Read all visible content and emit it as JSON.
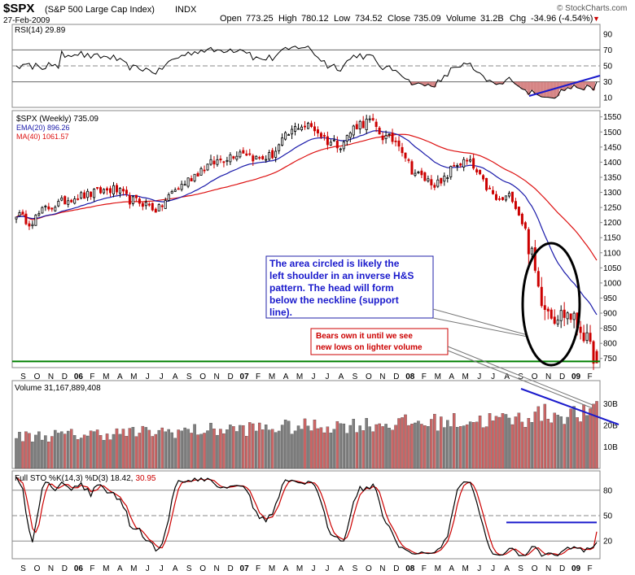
{
  "header": {
    "symbol": "$SPX",
    "name": "(S&P 500 Large Cap Index)",
    "exchange": "INDX",
    "date": "27-Feb-2009",
    "open_label": "Open",
    "open": "773.25",
    "high_label": "High",
    "high": "780.12",
    "low_label": "Low",
    "low": "734.52",
    "close_label": "Close",
    "close": "735.09",
    "volume_label": "Volume",
    "volume": "31.2B",
    "chg_label": "Chg",
    "chg": "-34.96 (-4.54%)",
    "chg_arrow": "▼",
    "watermark": "© StockCharts.com"
  },
  "colors": {
    "up_candle": "#000000",
    "down_candle": "#cc0000",
    "ema": "#1a1aaa",
    "ma": "#dd1111",
    "annotation_blue": "#1a1acc",
    "support_line": "#008000",
    "volume_up": "#808080",
    "volume_down": "#cc6666",
    "rsi_fill": "#cc6666"
  },
  "rsi": {
    "legend": "RSI(14) 29.89",
    "levels": [
      "90",
      "70",
      "50",
      "30",
      "10"
    ]
  },
  "price": {
    "legend": "$SPX (Weekly) 735.09",
    "ema_legend": "EMA(20) 896.26",
    "ma_legend": "MA(40) 1061.57",
    "tick_labels": [
      "1550",
      "1500",
      "1450",
      "1400",
      "1350",
      "1300",
      "1250",
      "1200",
      "1150",
      "1100",
      "1050",
      "1000",
      "950",
      "900",
      "850",
      "800",
      "750"
    ]
  },
  "volume": {
    "legend": "Volume 31,167,889,408",
    "tick_labels": [
      "30B",
      "20B",
      "10B"
    ]
  },
  "stochastic": {
    "legend_prefix": "Full STO %K(14,3) %D(3) 18.42,",
    "legend_d": "30.95",
    "levels": [
      "80",
      "50",
      "20"
    ]
  },
  "x_axis": {
    "labels": [
      "S",
      "O",
      "N",
      "D",
      "06",
      "F",
      "M",
      "A",
      "M",
      "J",
      "J",
      "A",
      "S",
      "O",
      "N",
      "D",
      "07",
      "F",
      "M",
      "A",
      "M",
      "J",
      "J",
      "A",
      "S",
      "O",
      "N",
      "D",
      "08",
      "F",
      "M",
      "A",
      "M",
      "J",
      "J",
      "A",
      "S",
      "O",
      "N",
      "D",
      "09",
      "F"
    ],
    "bold": [
      "06",
      "07",
      "08",
      "09"
    ]
  },
  "annotations": {
    "box1_lines": [
      "The area circled is likely the",
      "left shoulder in an inverse H&S",
      "pattern.  The head will form",
      "below the neckline (support",
      "line)."
    ],
    "box2_lines": [
      "Bears own it until we see",
      "new lows on lighter volume"
    ]
  },
  "chart_data": {
    "type": "candlestick",
    "title": "$SPX (S&P 500 Large Cap Index) INDX",
    "frequency": "weekly",
    "last_date": "27-Feb-2009",
    "last_bar": {
      "open": 773.25,
      "high": 780.12,
      "low": 734.52,
      "close": 735.09,
      "volume": 31167889408
    },
    "x_range": [
      "Sep 2005",
      "Feb 2009"
    ],
    "series": [
      {
        "name": "$SPX (Weekly)",
        "type": "close",
        "last": 735.09,
        "months": [
          "Sep05",
          "Oct05",
          "Nov05",
          "Dec05",
          "Jan06",
          "Feb06",
          "Mar06",
          "Apr06",
          "May06",
          "Jun06",
          "Jul06",
          "Aug06",
          "Sep06",
          "Oct06",
          "Nov06",
          "Dec06",
          "Jan07",
          "Feb07",
          "Mar07",
          "Apr07",
          "May07",
          "Jun07",
          "Jul07",
          "Aug07",
          "Sep07",
          "Oct07",
          "Nov07",
          "Dec07",
          "Jan08",
          "Feb08",
          "Mar08",
          "Apr08",
          "May08",
          "Jun08",
          "Jul08",
          "Aug08",
          "Sep08",
          "Oct08",
          "Nov08",
          "Dec08",
          "Jan09",
          "Feb09"
        ],
        "values": [
          1230,
          1200,
          1245,
          1262,
          1285,
          1290,
          1305,
          1310,
          1275,
          1265,
          1240,
          1300,
          1335,
          1375,
          1400,
          1420,
          1440,
          1410,
          1420,
          1480,
          1525,
          1515,
          1470,
          1460,
          1525,
          1535,
          1480,
          1470,
          1370,
          1340,
          1325,
          1395,
          1400,
          1330,
          1270,
          1290,
          1170,
          960,
          890,
          900,
          840,
          735
        ]
      },
      {
        "name": "EMA(20)",
        "last": 896.26
      },
      {
        "name": "MA(40)",
        "last": 1061.57
      }
    ],
    "price_axis": {
      "min": 725,
      "max": 1560
    },
    "rsi": {
      "name": "RSI(14)",
      "last": 29.89,
      "levels": [
        90,
        70,
        50,
        30,
        10
      ]
    },
    "volume": {
      "last": 31167889408,
      "axis_labels": [
        "30B",
        "20B",
        "10B"
      ]
    },
    "stochastic": {
      "name": "Full STO %K(14,3) %D(3)",
      "k": 18.42,
      "d": 30.95,
      "levels": [
        80,
        50,
        20
      ]
    },
    "support_line": {
      "price": 740
    },
    "grid": false
  }
}
